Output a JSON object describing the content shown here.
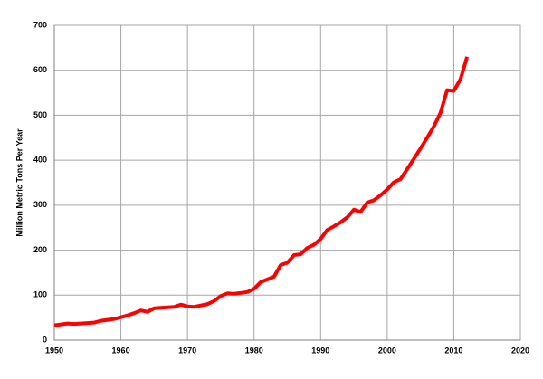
{
  "chart_data": {
    "type": "line",
    "y_label": "Million Metric Tons Per Year",
    "x": [
      1950,
      1951,
      1952,
      1953,
      1954,
      1955,
      1956,
      1957,
      1958,
      1959,
      1960,
      1961,
      1962,
      1963,
      1964,
      1965,
      1966,
      1967,
      1968,
      1969,
      1970,
      1971,
      1972,
      1973,
      1974,
      1975,
      1976,
      1977,
      1978,
      1979,
      1980,
      1981,
      1982,
      1983,
      1984,
      1985,
      1986,
      1987,
      1988,
      1989,
      1990,
      1991,
      1992,
      1993,
      1994,
      1995,
      1996,
      1997,
      1998,
      1999,
      2000,
      2001,
      2002,
      2003,
      2004,
      2005,
      2006,
      2007,
      2008,
      2009,
      2010,
      2011,
      2012
    ],
    "series": [
      {
        "color": "#ff0000",
        "values": [
          33,
          35,
          37,
          36,
          37,
          38,
          39,
          43,
          45,
          47,
          51,
          55,
          60,
          66,
          63,
          71,
          72,
          73,
          74,
          79,
          75,
          74,
          77,
          80,
          87,
          98,
          104,
          103,
          105,
          107,
          114,
          129,
          135,
          141,
          167,
          172,
          189,
          191,
          205,
          212,
          225,
          245,
          253,
          262,
          273,
          290,
          285,
          306,
          311,
          322,
          335,
          351,
          358,
          380,
          403,
          426,
          450,
          475,
          505,
          556,
          554,
          580,
          630
        ]
      }
    ],
    "xlim": [
      1950,
      2020
    ],
    "xticks": [
      1950,
      1960,
      1970,
      1980,
      1990,
      2000,
      2010,
      2020
    ],
    "ylim": [
      0,
      700
    ],
    "yticks": [
      0,
      100,
      200,
      300,
      400,
      500,
      600,
      700
    ],
    "grid": true
  }
}
